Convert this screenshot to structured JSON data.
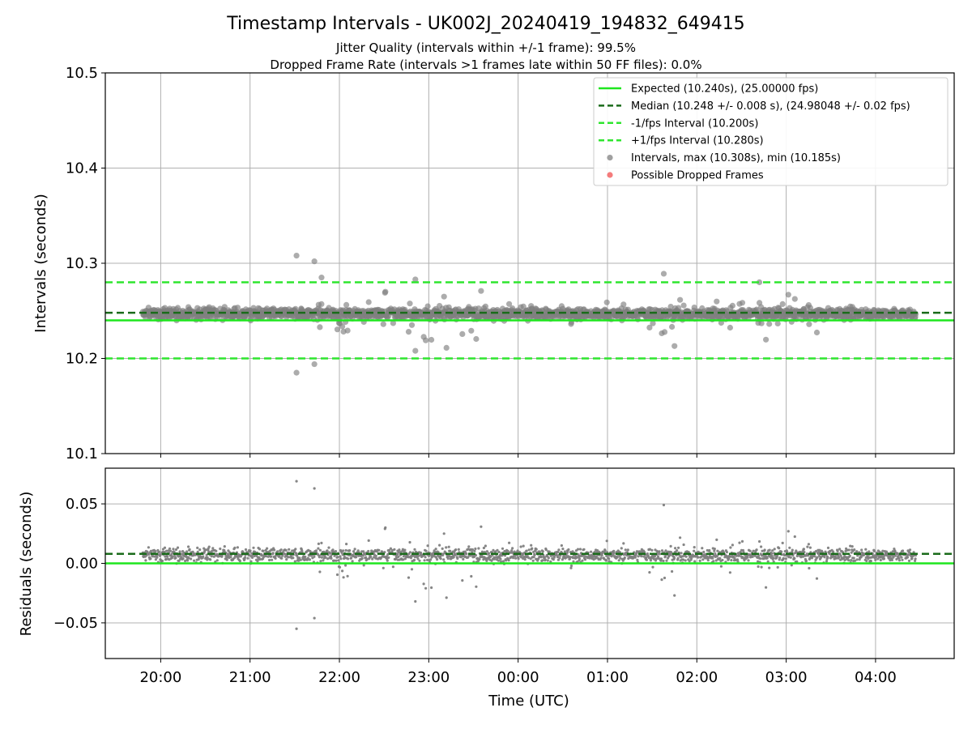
{
  "chart_data": {
    "type": "scatter",
    "title": "Timestamp Intervals - UK002J_20240419_194832_649415",
    "subtitle_lines": [
      "Jitter Quality (intervals within +/-1 frame): 99.5%",
      "Dropped Frame Rate (intervals >1 frames late within 50 FF files): 0.0%"
    ],
    "xlabel": "Time (UTC)",
    "x_ticks": [
      "20:00",
      "21:00",
      "22:00",
      "23:00",
      "00:00",
      "01:00",
      "02:00",
      "03:00",
      "04:00"
    ],
    "x_range_hours": [
      19.38,
      28.88
    ],
    "data_span_hours": [
      19.8,
      28.45
    ],
    "grid": true,
    "panels": [
      {
        "name": "intervals",
        "ylabel": "Intervals (seconds)",
        "ylim": [
          10.1,
          10.5
        ],
        "y_ticks": [
          "10.1",
          "10.2",
          "10.3",
          "10.4",
          "10.5"
        ],
        "y_tick_values": [
          10.1,
          10.2,
          10.3,
          10.4,
          10.5
        ],
        "hlines": [
          {
            "value": 10.24,
            "style": "solid",
            "color": "#1ee61e"
          },
          {
            "value": 10.248,
            "style": "dashed",
            "color": "#1a6b1a"
          },
          {
            "value": 10.2,
            "style": "dashed",
            "color": "#2ee62e"
          },
          {
            "value": 10.28,
            "style": "dashed",
            "color": "#2ee62e"
          }
        ],
        "center": 10.247,
        "extremes": [
          {
            "t": 21.52,
            "v": 10.308
          },
          {
            "t": 21.52,
            "v": 10.185
          },
          {
            "t": 21.72,
            "v": 10.302
          },
          {
            "t": 21.72,
            "v": 10.194
          },
          {
            "t": 21.8,
            "v": 10.285
          },
          {
            "t": 22.85,
            "v": 10.208
          },
          {
            "t": 22.85,
            "v": 10.283
          },
          {
            "t": 25.63,
            "v": 10.289
          },
          {
            "t": 25.75,
            "v": 10.213
          },
          {
            "t": 26.7,
            "v": 10.28
          }
        ]
      },
      {
        "name": "residuals",
        "ylabel": "Residuals (seconds)",
        "ylim": [
          -0.08,
          0.08
        ],
        "y_ticks": [
          "−0.05",
          "0.00",
          "0.05"
        ],
        "y_tick_values": [
          -0.05,
          0.0,
          0.05
        ],
        "hlines": [
          {
            "value": 0.0,
            "style": "solid",
            "color": "#1ee61e"
          },
          {
            "value": 0.008,
            "style": "dashed",
            "color": "#1a6b1a"
          }
        ],
        "center": 0.007,
        "extremes": [
          {
            "t": 21.52,
            "v": 0.069
          },
          {
            "t": 21.52,
            "v": -0.055
          },
          {
            "t": 21.72,
            "v": 0.063
          },
          {
            "t": 21.72,
            "v": -0.046
          },
          {
            "t": 22.85,
            "v": -0.032
          },
          {
            "t": 25.63,
            "v": 0.049
          },
          {
            "t": 25.75,
            "v": -0.027
          }
        ]
      }
    ],
    "legend": {
      "placement": "top-right",
      "entries": [
        {
          "label": "Expected (10.240s), (25.00000 fps)",
          "kind": "line-solid",
          "color": "#1ee61e"
        },
        {
          "label": "Median (10.248 +/- 0.008 s), (24.98048 +/- 0.02 fps)",
          "kind": "line-dashed",
          "color": "#1a6b1a"
        },
        {
          "label": "-1/fps Interval (10.200s)",
          "kind": "line-dashed",
          "color": "#2ee62e"
        },
        {
          "label": "+1/fps Interval (10.280s)",
          "kind": "line-dashed",
          "color": "#2ee62e"
        },
        {
          "label": "Intervals, max (10.308s), min (10.185s)",
          "kind": "marker",
          "color": "#808080"
        },
        {
          "label": "Possible Dropped Frames",
          "kind": "marker",
          "color": "#f05050"
        }
      ]
    },
    "colors": {
      "points": "#808080",
      "grid": "#b0b0b0"
    }
  }
}
